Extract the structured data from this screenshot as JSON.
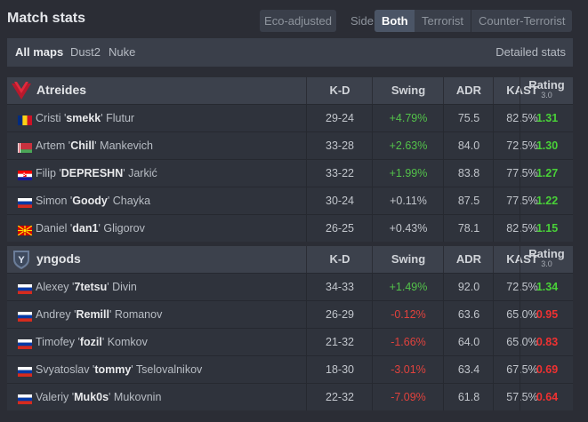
{
  "header": {
    "title": "Match stats",
    "eco_label": "Eco-adjusted",
    "side_label": "Side",
    "side_options": [
      "Both",
      "Terrorist",
      "Counter-Terrorist"
    ]
  },
  "maps": {
    "items": [
      "All maps",
      "Dust2",
      "Nuke"
    ],
    "detailed": "Detailed stats"
  },
  "columns": {
    "kd": "K-D",
    "swing": "Swing",
    "adr": "ADR",
    "kast": "KAST",
    "rating": "Rating",
    "rating_version": "3.0"
  },
  "teams": [
    {
      "name": "Atreides",
      "logo": "atreides-logo",
      "players": [
        {
          "first": "Cristi '",
          "nick": "smekk",
          "last": "' Flutur",
          "flag": "romania",
          "kd": "29-24",
          "swing": "+4.79%",
          "adr": "75.5",
          "kast": "82.5%",
          "rating": "1.31"
        },
        {
          "first": "Artem '",
          "nick": "Chill",
          "last": "' Mankevich",
          "flag": "belarus",
          "kd": "33-28",
          "swing": "+2.63%",
          "adr": "84.0",
          "kast": "72.5%",
          "rating": "1.30"
        },
        {
          "first": "Filip '",
          "nick": "DEPRESHN",
          "last": "' Jarkić",
          "flag": "croatia",
          "kd": "33-22",
          "swing": "+1.99%",
          "adr": "83.8",
          "kast": "77.5%",
          "rating": "1.27"
        },
        {
          "first": "Simon '",
          "nick": "Goody",
          "last": "' Chayka",
          "flag": "russia",
          "kd": "30-24",
          "swing": "+0.11%",
          "adr": "87.5",
          "kast": "77.5%",
          "rating": "1.22"
        },
        {
          "first": "Daniel '",
          "nick": "dan1",
          "last": "' Gligorov",
          "flag": "north-macedonia",
          "kd": "26-25",
          "swing": "+0.43%",
          "adr": "78.1",
          "kast": "82.5%",
          "rating": "1.15"
        }
      ]
    },
    {
      "name": "yngods",
      "logo": "yngods-logo",
      "players": [
        {
          "first": "Alexey '",
          "nick": "7tetsu",
          "last": "' Divin",
          "flag": "russia",
          "kd": "34-33",
          "swing": "+1.49%",
          "adr": "92.0",
          "kast": "72.5%",
          "rating": "1.34"
        },
        {
          "first": "Andrey '",
          "nick": "Remill",
          "last": "' Romanov",
          "flag": "russia",
          "kd": "26-29",
          "swing": "-0.12%",
          "adr": "63.6",
          "kast": "65.0%",
          "rating": "0.95"
        },
        {
          "first": "Timofey '",
          "nick": "fozil",
          "last": "' Komkov",
          "flag": "russia",
          "kd": "21-32",
          "swing": "-1.66%",
          "adr": "64.0",
          "kast": "65.0%",
          "rating": "0.83"
        },
        {
          "first": "Svyatoslav '",
          "nick": "tommy",
          "last": "' Tselovalnikov",
          "flag": "russia",
          "kd": "18-30",
          "swing": "-3.01%",
          "adr": "63.4",
          "kast": "67.5%",
          "rating": "0.69"
        },
        {
          "first": "Valeriy '",
          "nick": "Muk0s",
          "last": "' Mukovnin",
          "flag": "russia",
          "kd": "22-32",
          "swing": "-7.09%",
          "adr": "61.8",
          "kast": "57.5%",
          "rating": "0.64"
        }
      ]
    }
  ],
  "colors": {
    "positive": "#53c24a",
    "negative": "#e0423d",
    "rating_good": "#49d138",
    "rating_bad": "#ef3131"
  }
}
